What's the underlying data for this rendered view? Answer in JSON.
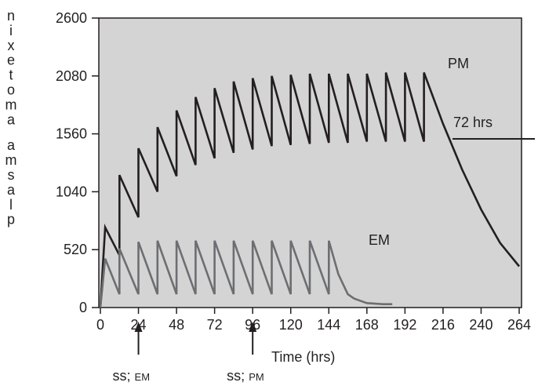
{
  "chart_data": {
    "type": "line",
    "title": "",
    "xlabel": "Time (hrs)",
    "ylabel": "plasma amotexin",
    "xlim": [
      0,
      264
    ],
    "ylim": [
      0,
      2600
    ],
    "xticks": [
      0,
      24,
      48,
      72,
      96,
      120,
      144,
      168,
      192,
      216,
      240,
      264
    ],
    "yticks": [
      0,
      520,
      1040,
      1560,
      2080,
      2600
    ],
    "background": "#d4d4d4",
    "series": [
      {
        "name": "PM",
        "color": "#231f20",
        "points": [
          [
            0,
            0
          ],
          [
            3,
            720
          ],
          [
            12,
            470
          ],
          [
            12,
            1190
          ],
          [
            24,
            810
          ],
          [
            24,
            1430
          ],
          [
            36,
            1040
          ],
          [
            36,
            1620
          ],
          [
            48,
            1180
          ],
          [
            48,
            1770
          ],
          [
            60,
            1280
          ],
          [
            60,
            1890
          ],
          [
            72,
            1340
          ],
          [
            72,
            1970
          ],
          [
            84,
            1390
          ],
          [
            84,
            2030
          ],
          [
            96,
            1420
          ],
          [
            96,
            2060
          ],
          [
            108,
            1450
          ],
          [
            108,
            2080
          ],
          [
            120,
            1460
          ],
          [
            120,
            2090
          ],
          [
            132,
            1470
          ],
          [
            132,
            2100
          ],
          [
            144,
            1480
          ],
          [
            144,
            2100
          ],
          [
            156,
            1480
          ],
          [
            156,
            2100
          ],
          [
            168,
            1490
          ],
          [
            168,
            2100
          ],
          [
            180,
            1490
          ],
          [
            180,
            2110
          ],
          [
            192,
            1490
          ],
          [
            192,
            2110
          ],
          [
            204,
            1490
          ],
          [
            204,
            2110
          ],
          [
            216,
            1650
          ],
          [
            228,
            1240
          ],
          [
            240,
            880
          ],
          [
            252,
            580
          ],
          [
            264,
            370
          ]
        ]
      },
      {
        "name": "EM",
        "color": "#6d6e71",
        "points": [
          [
            0,
            0
          ],
          [
            3,
            440
          ],
          [
            12,
            120
          ],
          [
            12,
            530
          ],
          [
            24,
            120
          ],
          [
            24,
            590
          ],
          [
            36,
            120
          ],
          [
            36,
            600
          ],
          [
            48,
            120
          ],
          [
            48,
            600
          ],
          [
            60,
            120
          ],
          [
            60,
            600
          ],
          [
            72,
            120
          ],
          [
            72,
            600
          ],
          [
            84,
            120
          ],
          [
            84,
            600
          ],
          [
            96,
            120
          ],
          [
            96,
            600
          ],
          [
            108,
            120
          ],
          [
            108,
            600
          ],
          [
            120,
            120
          ],
          [
            120,
            600
          ],
          [
            132,
            120
          ],
          [
            132,
            600
          ],
          [
            144,
            120
          ],
          [
            144,
            600
          ],
          [
            150,
            300
          ],
          [
            156,
            120
          ],
          [
            160,
            80
          ],
          [
            168,
            40
          ],
          [
            178,
            30
          ],
          [
            184,
            30
          ]
        ]
      }
    ],
    "annotations": {
      "pm_label": "PM",
      "em_label": "EM",
      "half_life": "72 hrs",
      "ss_em": {
        "main": "ss;",
        "sub": "EM",
        "x": 24
      },
      "ss_pm": {
        "main": "ss;",
        "sub": "PM",
        "x": 96
      }
    }
  }
}
